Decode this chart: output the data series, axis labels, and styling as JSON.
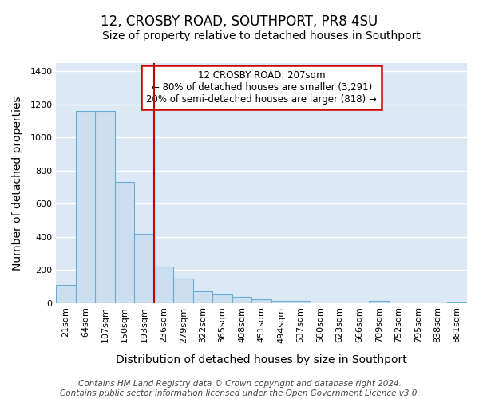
{
  "title": "12, CROSBY ROAD, SOUTHPORT, PR8 4SU",
  "subtitle": "Size of property relative to detached houses in Southport",
  "xlabel": "Distribution of detached houses by size in Southport",
  "ylabel": "Number of detached properties",
  "footer1": "Contains HM Land Registry data © Crown copyright and database right 2024.",
  "footer2": "Contains public sector information licensed under the Open Government Licence v3.0.",
  "categories": [
    "21sqm",
    "64sqm",
    "107sqm",
    "150sqm",
    "193sqm",
    "236sqm",
    "279sqm",
    "322sqm",
    "365sqm",
    "408sqm",
    "451sqm",
    "494sqm",
    "537sqm",
    "580sqm",
    "623sqm",
    "666sqm",
    "709sqm",
    "752sqm",
    "795sqm",
    "838sqm",
    "881sqm"
  ],
  "values": [
    107,
    1160,
    1160,
    730,
    420,
    220,
    148,
    72,
    50,
    38,
    20,
    13,
    13,
    0,
    0,
    0,
    13,
    0,
    0,
    0,
    3
  ],
  "bar_color": "#ccdff0",
  "bar_edge_color": "#6aaed6",
  "red_line_x": 4.5,
  "annotation_text": "12 CROSBY ROAD: 207sqm\n← 80% of detached houses are smaller (3,291)\n20% of semi-detached houses are larger (818) →",
  "annotation_box_facecolor": "#ffffff",
  "annotation_box_edgecolor": "#cc0000",
  "ylim": [
    0,
    1450
  ],
  "yticks": [
    0,
    200,
    400,
    600,
    800,
    1000,
    1200,
    1400
  ],
  "fig_bg": "#ffffff",
  "plot_bg": "#dce9f5",
  "grid_color": "#ffffff",
  "title_fontsize": 12,
  "subtitle_fontsize": 10,
  "axis_label_fontsize": 10,
  "tick_fontsize": 8,
  "footer_fontsize": 7.5
}
